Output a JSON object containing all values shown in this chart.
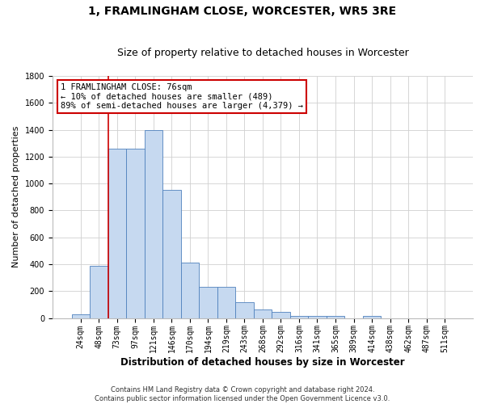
{
  "title": "1, FRAMLINGHAM CLOSE, WORCESTER, WR5 3RE",
  "subtitle": "Size of property relative to detached houses in Worcester",
  "xlabel": "Distribution of detached houses by size in Worcester",
  "ylabel": "Number of detached properties",
  "categories": [
    "24sqm",
    "48sqm",
    "73sqm",
    "97sqm",
    "121sqm",
    "146sqm",
    "170sqm",
    "194sqm",
    "219sqm",
    "243sqm",
    "268sqm",
    "292sqm",
    "316sqm",
    "341sqm",
    "365sqm",
    "389sqm",
    "414sqm",
    "438sqm",
    "462sqm",
    "487sqm",
    "511sqm"
  ],
  "values": [
    25,
    390,
    1260,
    1260,
    1395,
    950,
    410,
    230,
    230,
    115,
    65,
    45,
    15,
    15,
    15,
    0,
    15,
    0,
    0,
    0,
    0
  ],
  "bar_color": "#c6d9f0",
  "bar_edge_color": "#4f81bd",
  "vline_x_idx": 2,
  "vline_color": "#cc0000",
  "annotation_text": "1 FRAMLINGHAM CLOSE: 76sqm\n← 10% of detached houses are smaller (489)\n89% of semi-detached houses are larger (4,379) →",
  "annotation_box_color": "#ffffff",
  "annotation_box_edge_color": "#cc0000",
  "footer_text": "Contains HM Land Registry data © Crown copyright and database right 2024.\nContains public sector information licensed under the Open Government Licence v3.0.",
  "ylim": [
    0,
    1800
  ],
  "yticks": [
    0,
    200,
    400,
    600,
    800,
    1000,
    1200,
    1400,
    1600,
    1800
  ],
  "background_color": "#ffffff",
  "grid_color": "#d0d0d0",
  "title_fontsize": 10,
  "subtitle_fontsize": 9,
  "ylabel_fontsize": 8,
  "xlabel_fontsize": 8.5,
  "tick_fontsize": 7,
  "footer_fontsize": 6,
  "annot_fontsize": 7.5
}
